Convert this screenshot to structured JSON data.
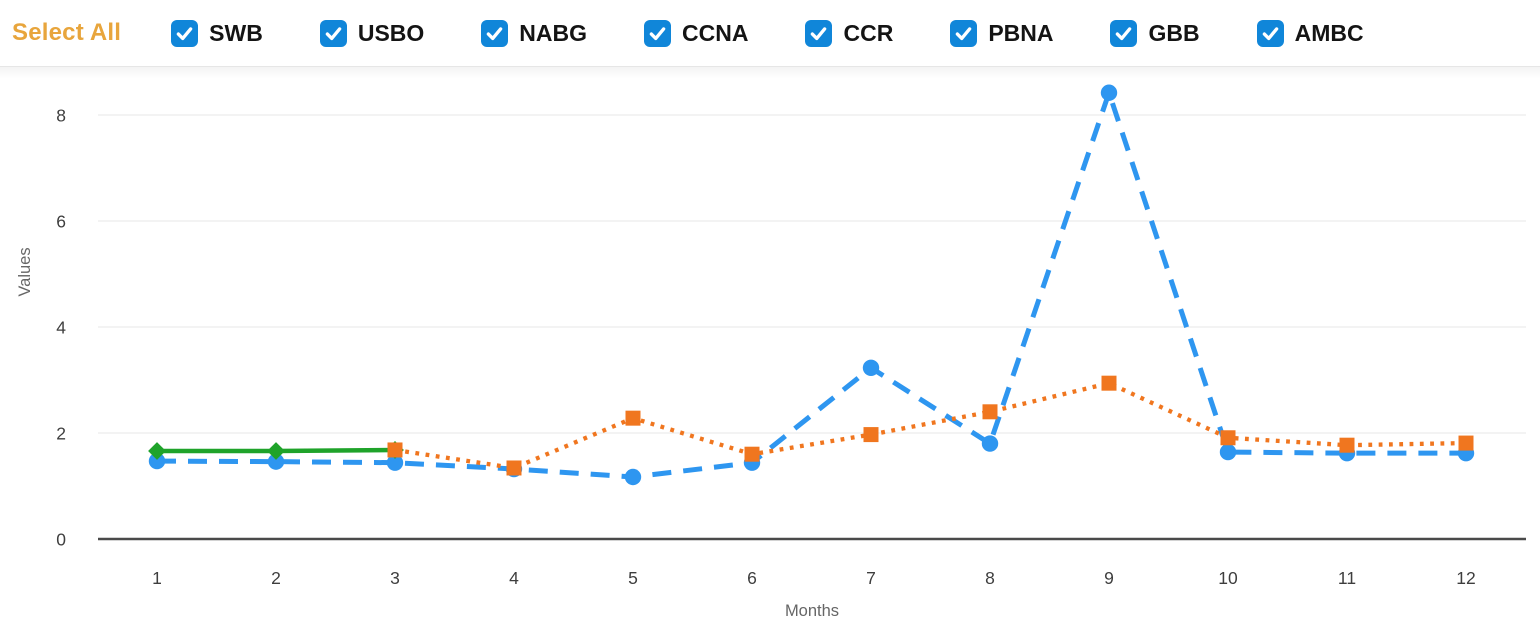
{
  "toolbar": {
    "select_all_label": "Select All",
    "select_all_color": "#E8A53C",
    "checkbox_color": "#1086D9",
    "checkmark_color": "#FFFFFF",
    "items": [
      {
        "label": "SWB",
        "checked": true
      },
      {
        "label": "USBO",
        "checked": true
      },
      {
        "label": "NABG",
        "checked": true
      },
      {
        "label": "CCNA",
        "checked": true
      },
      {
        "label": "CCR",
        "checked": true
      },
      {
        "label": "PBNA",
        "checked": true
      },
      {
        "label": "GBB",
        "checked": true
      },
      {
        "label": "AMBC",
        "checked": true
      }
    ]
  },
  "chart_data": {
    "type": "line",
    "title": "",
    "xlabel": "Months",
    "ylabel": "Values",
    "x": [
      1,
      2,
      3,
      4,
      5,
      6,
      7,
      8,
      9,
      10,
      11,
      12
    ],
    "yticks": [
      0,
      2,
      4,
      6,
      8
    ],
    "ylim": [
      0,
      8.8
    ],
    "grid": true,
    "legend_position": "none",
    "axis_color": "#4A4A4A",
    "gridline_color": "#ECECEC",
    "series": [
      {
        "name": "blue-dashed",
        "color": "#2E96F0",
        "style": "dashed",
        "marker": "circle",
        "x": [
          1,
          2,
          3,
          4,
          5,
          6,
          7,
          8,
          9,
          10,
          11,
          12
        ],
        "values": [
          1.47,
          1.46,
          1.44,
          1.32,
          1.17,
          1.44,
          3.23,
          1.8,
          8.42,
          1.64,
          1.62,
          1.62
        ]
      },
      {
        "name": "green-solid",
        "color": "#1FA32A",
        "style": "solid",
        "marker": "diamond",
        "x": [
          1,
          2,
          3
        ],
        "values": [
          1.66,
          1.66,
          1.68
        ]
      },
      {
        "name": "orange-dotted",
        "color": "#F0761F",
        "style": "dotted",
        "marker": "square",
        "x": [
          3,
          4,
          5,
          6,
          7,
          8,
          9,
          10,
          11,
          12
        ],
        "values": [
          1.68,
          1.34,
          2.28,
          1.6,
          1.97,
          2.4,
          2.94,
          1.91,
          1.77,
          1.81
        ]
      }
    ]
  }
}
